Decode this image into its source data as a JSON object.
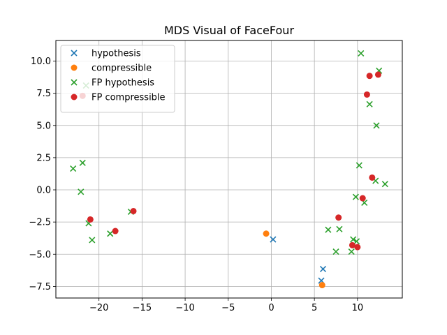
{
  "chart_data": {
    "type": "scatter",
    "title": "MDS Visual of FaceFour",
    "xlabel": "",
    "ylabel": "",
    "xlim": [
      -25.0,
      15.2
    ],
    "ylim": [
      -8.4,
      11.6
    ],
    "xticks": [
      -20,
      -15,
      -10,
      -5,
      0,
      5,
      10
    ],
    "xtick_labels": [
      "−20",
      "−15",
      "−10",
      "−5",
      "0",
      "5",
      "10"
    ],
    "yticks": [
      -7.5,
      -5.0,
      -2.5,
      0.0,
      2.5,
      5.0,
      7.5,
      10.0
    ],
    "ytick_labels": [
      "−7.5",
      "−5.0",
      "−2.5",
      "0.0",
      "2.5",
      "5.0",
      "7.5",
      "10.0"
    ],
    "grid": true,
    "legend": "upper-left",
    "series": [
      {
        "name": "hypothesis",
        "marker": "x",
        "color": "#1f77b4",
        "points": [
          [
            0.2,
            -3.85
          ],
          [
            6.0,
            -6.15
          ],
          [
            5.8,
            -7.05
          ]
        ]
      },
      {
        "name": "compressible",
        "marker": "o",
        "color": "#ff7f0e",
        "points": [
          [
            -0.6,
            -3.4
          ],
          [
            5.9,
            -7.4
          ]
        ]
      },
      {
        "name": "FP hypothesis",
        "marker": "x",
        "color": "#2ca02c",
        "points": [
          [
            -23.0,
            1.65
          ],
          [
            -21.9,
            2.1
          ],
          [
            -22.1,
            -0.15
          ],
          [
            -21.5,
            8.1
          ],
          [
            -21.2,
            -2.6
          ],
          [
            -20.8,
            -3.9
          ],
          [
            -18.7,
            -3.4
          ],
          [
            -16.3,
            -1.7
          ],
          [
            6.6,
            -3.1
          ],
          [
            7.5,
            -4.8
          ],
          [
            7.9,
            -3.05
          ],
          [
            9.3,
            -4.8
          ],
          [
            9.5,
            -3.85
          ],
          [
            9.9,
            -4.0
          ],
          [
            9.8,
            -0.55
          ],
          [
            10.2,
            1.9
          ],
          [
            10.4,
            10.6
          ],
          [
            10.8,
            -1.0
          ],
          [
            11.4,
            6.65
          ],
          [
            12.2,
            5.0
          ],
          [
            12.1,
            0.7
          ],
          [
            12.5,
            9.25
          ],
          [
            13.2,
            0.45
          ]
        ]
      },
      {
        "name": "FP compressible",
        "marker": "o",
        "color": "#d62728",
        "points": [
          [
            -21.9,
            7.3
          ],
          [
            -21.0,
            -2.3
          ],
          [
            -18.1,
            -3.2
          ],
          [
            -16.0,
            -1.65
          ],
          [
            7.8,
            -2.15
          ],
          [
            9.4,
            -4.3
          ],
          [
            10.0,
            -4.45
          ],
          [
            10.6,
            -0.65
          ],
          [
            11.1,
            7.4
          ],
          [
            11.4,
            8.85
          ],
          [
            11.7,
            0.95
          ],
          [
            12.4,
            8.95
          ]
        ]
      }
    ]
  }
}
